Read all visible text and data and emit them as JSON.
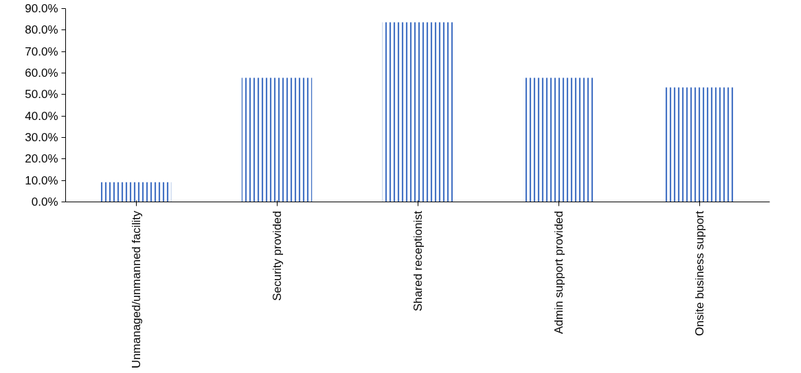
{
  "chart_data": {
    "type": "bar",
    "categories": [
      "Unmanaged/unmanned facility",
      "Security provided",
      "Shared receptionist",
      "Admin support provided",
      "Onsite business support"
    ],
    "values": [
      9.2,
      57.8,
      83.6,
      57.8,
      53.3
    ],
    "color": "#4472c4",
    "ylim": [
      0,
      90
    ],
    "yticks": [
      {
        "value": 0,
        "label": "0.0%"
      },
      {
        "value": 10,
        "label": "10.0%"
      },
      {
        "value": 20,
        "label": "20.0%"
      },
      {
        "value": 30,
        "label": "30.0%"
      },
      {
        "value": 40,
        "label": "40.0%"
      },
      {
        "value": 50,
        "label": "50.0%"
      },
      {
        "value": 60,
        "label": "60.0%"
      },
      {
        "value": 70,
        "label": "70.0%"
      },
      {
        "value": 80,
        "label": "80.0%"
      },
      {
        "value": 90,
        "label": "90.0%"
      }
    ],
    "grid": false
  }
}
